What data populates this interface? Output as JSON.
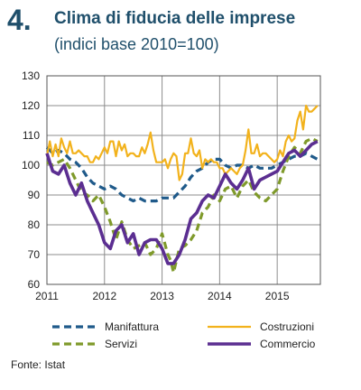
{
  "figure": {
    "number": "4.",
    "title": "Clima di fiducia delle imprese",
    "subtitle": "(indici base 2010=100)",
    "source": "Fonte: Istat"
  },
  "chart_data": {
    "type": "line",
    "xlim": [
      2011,
      2015.75
    ],
    "ylim": [
      60,
      130
    ],
    "yticks": [
      60,
      70,
      80,
      90,
      100,
      110,
      120,
      130
    ],
    "xticks": [
      2011,
      2012,
      2013,
      2014,
      2015
    ],
    "xtick_labels": [
      "2011",
      "2012",
      "2013",
      "2014",
      "2015"
    ],
    "grid": true,
    "legend_position": "bottom",
    "series": [
      {
        "name": "Manifattura",
        "color": "#1f5a8a",
        "dash": "dash",
        "points": [
          [
            2011.0,
            106
          ],
          [
            2011.1,
            104
          ],
          [
            2011.2,
            105
          ],
          [
            2011.3,
            104
          ],
          [
            2011.4,
            102
          ],
          [
            2011.5,
            101
          ],
          [
            2011.6,
            99
          ],
          [
            2011.7,
            96
          ],
          [
            2011.8,
            94
          ],
          [
            2011.9,
            93
          ],
          [
            2012.0,
            92
          ],
          [
            2012.1,
            93
          ],
          [
            2012.2,
            92
          ],
          [
            2012.3,
            90
          ],
          [
            2012.4,
            89
          ],
          [
            2012.5,
            88
          ],
          [
            2012.6,
            89
          ],
          [
            2012.7,
            88
          ],
          [
            2012.8,
            88
          ],
          [
            2012.9,
            88
          ],
          [
            2013.0,
            89
          ],
          [
            2013.1,
            89
          ],
          [
            2013.2,
            89
          ],
          [
            2013.3,
            91
          ],
          [
            2013.4,
            93
          ],
          [
            2013.5,
            96
          ],
          [
            2013.6,
            98
          ],
          [
            2013.7,
            99
          ],
          [
            2013.8,
            101
          ],
          [
            2013.9,
            102
          ],
          [
            2014.0,
            102
          ],
          [
            2014.1,
            100
          ],
          [
            2014.2,
            99
          ],
          [
            2014.3,
            100
          ],
          [
            2014.4,
            100
          ],
          [
            2014.5,
            99
          ],
          [
            2014.6,
            100
          ],
          [
            2014.7,
            99
          ],
          [
            2014.8,
            99
          ],
          [
            2014.9,
            99
          ],
          [
            2015.0,
            100
          ],
          [
            2015.1,
            101
          ],
          [
            2015.2,
            102
          ],
          [
            2015.3,
            103
          ],
          [
            2015.4,
            103
          ],
          [
            2015.5,
            104
          ],
          [
            2015.6,
            103
          ],
          [
            2015.7,
            102
          ]
        ]
      },
      {
        "name": "Costruzioni",
        "color": "#f2b21c",
        "dash": "solid",
        "points": [
          [
            2011.0,
            103
          ],
          [
            2011.05,
            108
          ],
          [
            2011.1,
            103
          ],
          [
            2011.15,
            107
          ],
          [
            2011.2,
            103
          ],
          [
            2011.25,
            109
          ],
          [
            2011.3,
            106
          ],
          [
            2011.35,
            104
          ],
          [
            2011.4,
            108
          ],
          [
            2011.45,
            104
          ],
          [
            2011.5,
            104
          ],
          [
            2011.55,
            105
          ],
          [
            2011.6,
            104
          ],
          [
            2011.65,
            103
          ],
          [
            2011.7,
            103
          ],
          [
            2011.75,
            101
          ],
          [
            2011.8,
            101
          ],
          [
            2011.85,
            103
          ],
          [
            2011.9,
            102
          ],
          [
            2011.95,
            104
          ],
          [
            2012.0,
            106
          ],
          [
            2012.05,
            104
          ],
          [
            2012.1,
            108
          ],
          [
            2012.15,
            108
          ],
          [
            2012.2,
            103
          ],
          [
            2012.25,
            108
          ],
          [
            2012.3,
            105
          ],
          [
            2012.35,
            107
          ],
          [
            2012.4,
            103
          ],
          [
            2012.45,
            104
          ],
          [
            2012.5,
            104
          ],
          [
            2012.55,
            103
          ],
          [
            2012.6,
            103
          ],
          [
            2012.65,
            106
          ],
          [
            2012.7,
            104
          ],
          [
            2012.75,
            107
          ],
          [
            2012.8,
            111
          ],
          [
            2012.85,
            105
          ],
          [
            2012.9,
            101
          ],
          [
            2012.95,
            101
          ],
          [
            2013.0,
            101
          ],
          [
            2013.05,
            102
          ],
          [
            2013.1,
            99
          ],
          [
            2013.15,
            102
          ],
          [
            2013.2,
            104
          ],
          [
            2013.25,
            103
          ],
          [
            2013.3,
            95
          ],
          [
            2013.35,
            97
          ],
          [
            2013.4,
            104
          ],
          [
            2013.45,
            104
          ],
          [
            2013.5,
            109
          ],
          [
            2013.55,
            104
          ],
          [
            2013.6,
            103
          ],
          [
            2013.65,
            105
          ],
          [
            2013.7,
            99
          ],
          [
            2013.75,
            102
          ],
          [
            2013.8,
            101
          ],
          [
            2013.85,
            102
          ],
          [
            2013.9,
            101
          ],
          [
            2013.95,
            101
          ],
          [
            2014.0,
            99
          ],
          [
            2014.05,
            99
          ],
          [
            2014.1,
            97
          ],
          [
            2014.15,
            98
          ],
          [
            2014.2,
            99
          ],
          [
            2014.25,
            98
          ],
          [
            2014.3,
            97
          ],
          [
            2014.35,
            99
          ],
          [
            2014.4,
            100
          ],
          [
            2014.45,
            105
          ],
          [
            2014.5,
            112
          ],
          [
            2014.55,
            104
          ],
          [
            2014.6,
            104
          ],
          [
            2014.65,
            107
          ],
          [
            2014.7,
            103
          ],
          [
            2014.75,
            104
          ],
          [
            2014.8,
            104
          ],
          [
            2014.85,
            103
          ],
          [
            2014.9,
            102
          ],
          [
            2014.95,
            101
          ],
          [
            2015.0,
            102
          ],
          [
            2015.05,
            105
          ],
          [
            2015.1,
            103
          ],
          [
            2015.15,
            108
          ],
          [
            2015.2,
            110
          ],
          [
            2015.25,
            108
          ],
          [
            2015.3,
            109
          ],
          [
            2015.35,
            115
          ],
          [
            2015.4,
            118
          ],
          [
            2015.45,
            112
          ],
          [
            2015.5,
            120
          ],
          [
            2015.55,
            118
          ],
          [
            2015.6,
            118
          ],
          [
            2015.65,
            119
          ],
          [
            2015.7,
            120
          ]
        ]
      },
      {
        "name": "Servizi",
        "color": "#7f9a2b",
        "dash": "dash",
        "points": [
          [
            2011.0,
            101
          ],
          [
            2011.1,
            100
          ],
          [
            2011.2,
            101
          ],
          [
            2011.3,
            102
          ],
          [
            2011.4,
            99
          ],
          [
            2011.5,
            95
          ],
          [
            2011.6,
            91
          ],
          [
            2011.7,
            90
          ],
          [
            2011.8,
            88
          ],
          [
            2011.9,
            90
          ],
          [
            2012.0,
            86
          ],
          [
            2012.1,
            81
          ],
          [
            2012.2,
            75
          ],
          [
            2012.3,
            81
          ],
          [
            2012.4,
            75
          ],
          [
            2012.5,
            72
          ],
          [
            2012.6,
            73
          ],
          [
            2012.7,
            74
          ],
          [
            2012.8,
            70
          ],
          [
            2012.9,
            72
          ],
          [
            2013.0,
            77
          ],
          [
            2013.1,
            70
          ],
          [
            2013.15,
            68
          ],
          [
            2013.2,
            64
          ],
          [
            2013.3,
            72
          ],
          [
            2013.4,
            73
          ],
          [
            2013.5,
            75
          ],
          [
            2013.6,
            78
          ],
          [
            2013.7,
            84
          ],
          [
            2013.8,
            86
          ],
          [
            2013.9,
            90
          ],
          [
            2014.0,
            88
          ],
          [
            2014.1,
            92
          ],
          [
            2014.2,
            93
          ],
          [
            2014.3,
            89
          ],
          [
            2014.4,
            93
          ],
          [
            2014.5,
            95
          ],
          [
            2014.6,
            91
          ],
          [
            2014.7,
            89
          ],
          [
            2014.8,
            88
          ],
          [
            2014.9,
            90
          ],
          [
            2015.0,
            92
          ],
          [
            2015.1,
            98
          ],
          [
            2015.2,
            103
          ],
          [
            2015.3,
            106
          ],
          [
            2015.4,
            104
          ],
          [
            2015.5,
            108
          ],
          [
            2015.6,
            109
          ],
          [
            2015.7,
            108
          ]
        ]
      },
      {
        "name": "Commercio",
        "color": "#5b2e91",
        "dash": "solid",
        "points": [
          [
            2011.0,
            104
          ],
          [
            2011.1,
            98
          ],
          [
            2011.2,
            97
          ],
          [
            2011.3,
            100
          ],
          [
            2011.4,
            94
          ],
          [
            2011.5,
            90
          ],
          [
            2011.6,
            94
          ],
          [
            2011.7,
            88
          ],
          [
            2011.8,
            84
          ],
          [
            2011.9,
            80
          ],
          [
            2012.0,
            74
          ],
          [
            2012.1,
            72
          ],
          [
            2012.2,
            78
          ],
          [
            2012.3,
            80
          ],
          [
            2012.4,
            74
          ],
          [
            2012.5,
            77
          ],
          [
            2012.6,
            70
          ],
          [
            2012.7,
            74
          ],
          [
            2012.8,
            75
          ],
          [
            2012.9,
            75
          ],
          [
            2013.0,
            72
          ],
          [
            2013.1,
            67
          ],
          [
            2013.2,
            67
          ],
          [
            2013.3,
            70
          ],
          [
            2013.4,
            75
          ],
          [
            2013.5,
            82
          ],
          [
            2013.6,
            84
          ],
          [
            2013.7,
            88
          ],
          [
            2013.8,
            90
          ],
          [
            2013.9,
            89
          ],
          [
            2014.0,
            93
          ],
          [
            2014.1,
            97
          ],
          [
            2014.2,
            94
          ],
          [
            2014.3,
            92
          ],
          [
            2014.4,
            95
          ],
          [
            2014.5,
            99
          ],
          [
            2014.6,
            92
          ],
          [
            2014.7,
            95
          ],
          [
            2014.8,
            96
          ],
          [
            2014.9,
            97
          ],
          [
            2015.0,
            98
          ],
          [
            2015.1,
            101
          ],
          [
            2015.2,
            104
          ],
          [
            2015.3,
            105
          ],
          [
            2015.4,
            103
          ],
          [
            2015.5,
            105
          ],
          [
            2015.6,
            107
          ],
          [
            2015.7,
            108
          ]
        ]
      }
    ]
  }
}
